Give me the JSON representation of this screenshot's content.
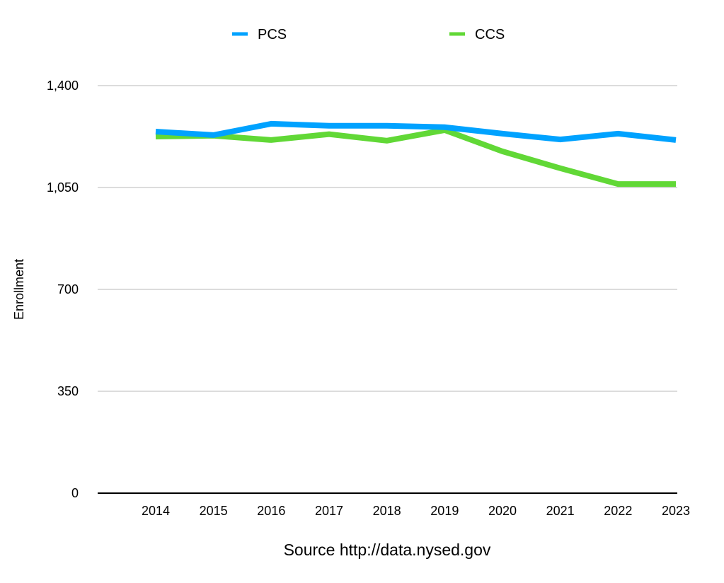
{
  "chart_data": {
    "type": "line",
    "title": "",
    "xlabel": "Source http://data.nysed.gov",
    "ylabel": "Enrollment",
    "categories": [
      "2014",
      "2015",
      "2016",
      "2017",
      "2018",
      "2019",
      "2020",
      "2021",
      "2022",
      "2023"
    ],
    "series": [
      {
        "name": "PCS",
        "color": "#00A2FF",
        "values": [
          1242,
          1230,
          1269,
          1262,
          1262,
          1257,
          1235,
          1215,
          1235,
          1213
        ]
      },
      {
        "name": "CCS",
        "color": "#61D836",
        "values": [
          1225,
          1228,
          1213,
          1233,
          1211,
          1247,
          1174,
          1116,
          1062,
          1062
        ]
      }
    ],
    "ylim": [
      0,
      1400
    ],
    "yticks": [
      0,
      350,
      700,
      1050,
      1400
    ],
    "ytick_labels": [
      "0",
      "350",
      "700",
      "1,050",
      "1,400"
    ],
    "grid": true,
    "legend_position": "top-center"
  }
}
